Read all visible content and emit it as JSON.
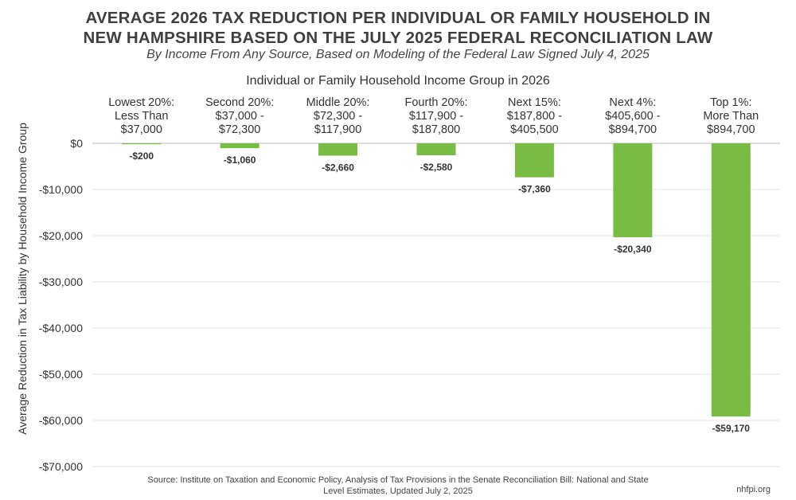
{
  "title_lines": [
    "AVERAGE 2026 TAX REDUCTION PER INDIVIDUAL OR FAMILY HOUSEHOLD IN",
    "NEW HAMPSHIRE BASED ON THE JULY 2025 FEDERAL RECONCILIATION LAW"
  ],
  "subtitle": "By Income From Any Source, Based on Modeling of the Federal Law Signed July 4, 2025",
  "source_lines": [
    "Source: Institute on Taxation and Economic Policy, Analysis of Tax Provisions in the Senate Reconciliation Bill: National and State",
    "Level Estimates, Updated July 2, 2025"
  ],
  "credit": "nhfpi.org",
  "colors": {
    "bar": "#79bc43",
    "grid": "#e3e3e3",
    "baseline": "#bdbdbd"
  },
  "chart_data": {
    "type": "bar",
    "title": "AVERAGE 2026 TAX REDUCTION PER INDIVIDUAL OR FAMILY HOUSEHOLD IN NEW HAMPSHIRE BASED ON THE JULY 2025 FEDERAL RECONCILIATION LAW",
    "subtitle": "By Income From Any Source, Based on Modeling of the Federal Law Signed July 4, 2025",
    "xlabel": "Individual or Family Household Income Group in 2026",
    "ylabel": "Average Reduction in Tax Liability by Household Income Group",
    "categories": [
      [
        "Lowest 20%:",
        "Less Than",
        "$37,000"
      ],
      [
        "Second 20%:",
        "$37,000 -",
        "$72,300"
      ],
      [
        "Middle 20%:",
        "$72,300 -",
        "$117,900"
      ],
      [
        "Fourth 20%:",
        "$117,900 -",
        "$187,800"
      ],
      [
        "Next 15%:",
        "$187,800 -",
        "$405,500"
      ],
      [
        "Next 4%:",
        "$405,600 -",
        "$894,700"
      ],
      [
        "Top 1%:",
        "More Than",
        "$894,700"
      ]
    ],
    "values": [
      -200,
      -1060,
      -2660,
      -2580,
      -7360,
      -20340,
      -59170
    ],
    "value_labels": [
      "-$200",
      "-$1,060",
      "-$2,660",
      "-$2,580",
      "-$7,360",
      "-$20,340",
      "-$59,170"
    ],
    "ylim": [
      -70000,
      0
    ],
    "yticks": [
      0,
      -10000,
      -20000,
      -30000,
      -40000,
      -50000,
      -60000,
      -70000
    ],
    "ytick_labels": [
      "$0",
      "-$10,000",
      "-$20,000",
      "-$30,000",
      "-$40,000",
      "-$50,000",
      "-$60,000",
      "-$70,000"
    ],
    "grid": true,
    "legend": "none"
  }
}
